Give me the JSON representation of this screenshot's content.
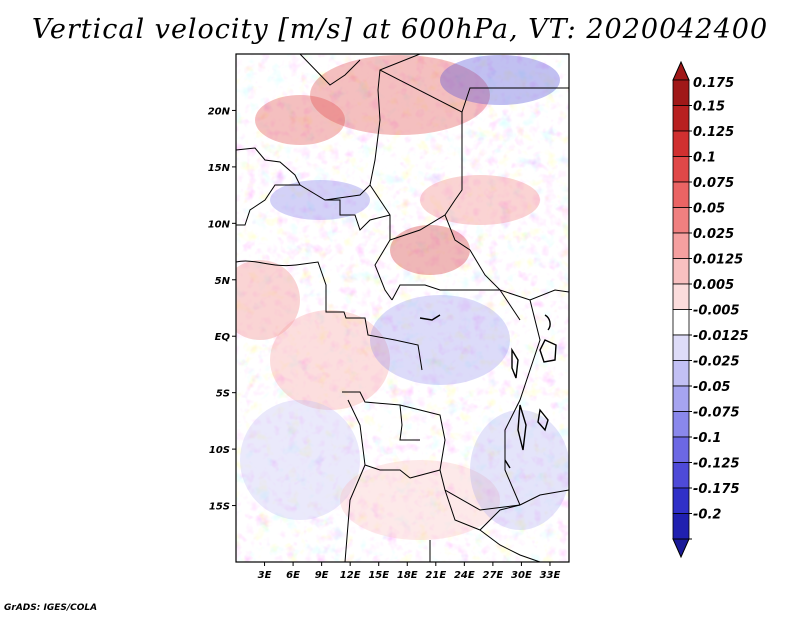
{
  "title": "Vertical velocity [m/s] at 600hPa, VT: 2020042400",
  "footer": "GrADS: IGES/COLA",
  "map": {
    "lon_range": [
      0,
      35
    ],
    "lat_range": [
      -20,
      25
    ],
    "x_ticks": [
      {
        "lon": 3,
        "label": "3E"
      },
      {
        "lon": 6,
        "label": "6E"
      },
      {
        "lon": 9,
        "label": "9E"
      },
      {
        "lon": 12,
        "label": "12E"
      },
      {
        "lon": 15,
        "label": "15E"
      },
      {
        "lon": 18,
        "label": "18E"
      },
      {
        "lon": 21,
        "label": "21E"
      },
      {
        "lon": 24,
        "label": "24E"
      },
      {
        "lon": 27,
        "label": "27E"
      },
      {
        "lon": 30,
        "label": "30E"
      },
      {
        "lon": 33,
        "label": "33E"
      }
    ],
    "y_ticks": [
      {
        "lat": 20,
        "label": "20N"
      },
      {
        "lat": 15,
        "label": "15N"
      },
      {
        "lat": 10,
        "label": "10N"
      },
      {
        "lat": 5,
        "label": "5N"
      },
      {
        "lat": 0,
        "label": "EQ"
      },
      {
        "lat": -5,
        "label": "5S"
      },
      {
        "lat": -10,
        "label": "10S"
      },
      {
        "lat": -15,
        "label": "15S"
      }
    ]
  },
  "colorbar": {
    "levels": [
      {
        "label": "0.175",
        "color": "#a01818"
      },
      {
        "label": "0.15",
        "color": "#b82020"
      },
      {
        "label": "0.125",
        "color": "#d03030"
      },
      {
        "label": "0.1",
        "color": "#e04848"
      },
      {
        "label": "0.075",
        "color": "#ea6464"
      },
      {
        "label": "0.05",
        "color": "#f08080"
      },
      {
        "label": "0.025",
        "color": "#f5a0a0"
      },
      {
        "label": "0.0125",
        "color": "#f8c0c0"
      },
      {
        "label": "0.005",
        "color": "#fbdcdc"
      },
      {
        "label": "-0.005",
        "color": "#ffffff"
      },
      {
        "label": "-0.0125",
        "color": "#dedcf8"
      },
      {
        "label": "-0.025",
        "color": "#c2c0f4"
      },
      {
        "label": "-0.05",
        "color": "#a6a4f0"
      },
      {
        "label": "-0.075",
        "color": "#8a88ec"
      },
      {
        "label": "-0.1",
        "color": "#6c68e4"
      },
      {
        "label": "-0.125",
        "color": "#4e4ad8"
      },
      {
        "label": "-0.175",
        "color": "#3030c8"
      },
      {
        "label": "-0.2",
        "color": "#2020b0"
      }
    ],
    "top_color": "#a01818",
    "bottom_color": "#1a1a98"
  }
}
